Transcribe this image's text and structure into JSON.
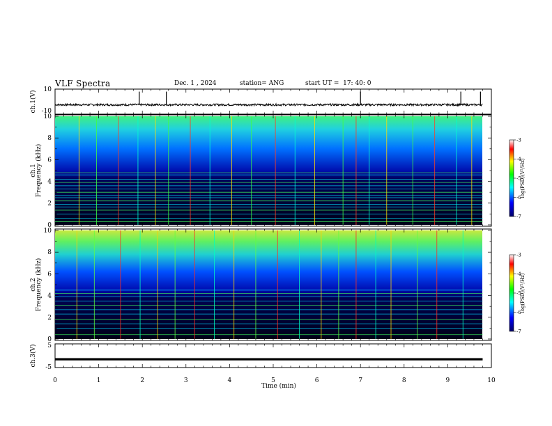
{
  "header": {
    "title": "VLF Spectra",
    "date": "Dec. 1 , 2024",
    "station": "station= ANG",
    "start": "start UT =  17: 40: 0"
  },
  "chart_data": [
    {
      "type": "line",
      "panel": "ch1-waveform",
      "ylabel": "ch.1(V)",
      "ylim": [
        -10,
        10
      ],
      "yticks": [
        "10",
        "-10"
      ],
      "xlim": [
        0,
        10
      ],
      "baseline": -2.5,
      "noise_band": [
        -3.3,
        -1.7
      ],
      "spikes_min": [
        1.93,
        2.55,
        7.0,
        9.3,
        9.75
      ]
    },
    {
      "type": "heatmap",
      "panel": "ch1-spectrogram",
      "ylabel_line1": "ch.1",
      "ylabel_line2": "Frequency (kHz)",
      "ylim": [
        0,
        10
      ],
      "yticks": [
        "0",
        "2",
        "4",
        "6",
        "8",
        "10"
      ],
      "xlim": [
        0,
        10
      ],
      "data_end_min": 9.8,
      "colorbar": {
        "label": "log(PSD)(V²/Hz)",
        "range": [
          -7,
          -3
        ],
        "ticks": [
          "-3",
          "-4",
          "-5",
          "-6",
          "-7"
        ],
        "colors": [
          "#000066",
          "#0000ff",
          "#00ffff",
          "#00ff00",
          "#ffff00",
          "#ff0000",
          "#ffffff"
        ]
      },
      "tones_khz": [
        0.3,
        0.6,
        1.0,
        1.35,
        1.65,
        1.9,
        2.2,
        2.5,
        2.7,
        3.0,
        3.3,
        3.6,
        3.9,
        4.2,
        4.6,
        4.8
      ],
      "sferics_min": [
        0.55,
        0.95,
        1.45,
        1.9,
        2.3,
        2.6,
        3.1,
        3.55,
        4.05,
        4.5,
        5.05,
        5.5,
        5.95,
        6.6,
        6.9,
        7.2,
        7.6,
        8.2,
        8.7,
        9.2,
        9.55
      ]
    },
    {
      "type": "heatmap",
      "panel": "ch2-spectrogram",
      "ylabel_line1": "ch.2",
      "ylabel_line2": "Frequency (kHz)",
      "ylim": [
        0,
        10
      ],
      "yticks": [
        "0",
        "2",
        "4",
        "6",
        "8",
        "10"
      ],
      "xlim": [
        0,
        10
      ],
      "data_end_min": 9.8,
      "colorbar": {
        "label": "log(PSD)(V²/Hz)",
        "range": [
          -7,
          -3
        ],
        "ticks": [
          "-3",
          "-4",
          "-5",
          "-6",
          "-7"
        ],
        "colors": [
          "#000066",
          "#0000ff",
          "#00ffff",
          "#00ff00",
          "#ffff00",
          "#ff0000",
          "#ffffff"
        ]
      },
      "tones_khz": [
        0.4,
        1.0,
        1.4,
        1.8,
        2.3,
        2.7,
        3.1,
        3.5,
        3.9,
        4.2,
        4.5
      ],
      "sferics_min": [
        0.5,
        0.9,
        1.5,
        1.95,
        2.35,
        2.75,
        3.2,
        3.65,
        4.1,
        4.6,
        5.1,
        5.6,
        6.1,
        6.5,
        6.9,
        7.35,
        7.7,
        8.3,
        8.75,
        9.35
      ]
    },
    {
      "type": "line",
      "panel": "ch3-waveform",
      "ylabel": "ch.3(V)",
      "ylim": [
        -5,
        5
      ],
      "yticks": [
        "5",
        "-5"
      ],
      "xlim": [
        0,
        10
      ],
      "xlabel": "Time (min)",
      "xticks": [
        "0",
        "1",
        "2",
        "3",
        "4",
        "5",
        "6",
        "7",
        "8",
        "9",
        "10"
      ],
      "baseline": -1.5
    }
  ]
}
